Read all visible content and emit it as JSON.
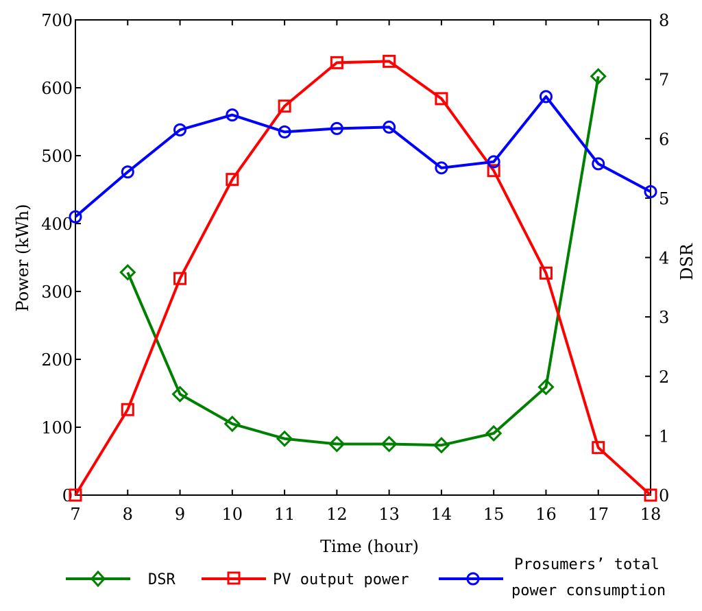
{
  "chart_data": {
    "type": "line",
    "title": "",
    "xlabel": "Time (hour)",
    "ylabel_left": "Power (kWh)",
    "ylabel_right": "DSR",
    "xlim": [
      7,
      18
    ],
    "ylim_left": [
      0,
      700
    ],
    "ylim_right": [
      0,
      8
    ],
    "grid": false,
    "legend_position": "bottom",
    "x_ticks": [
      7,
      8,
      9,
      10,
      11,
      12,
      13,
      14,
      15,
      16,
      17,
      18
    ],
    "y_left_ticks": [
      0,
      100,
      200,
      300,
      400,
      500,
      600,
      700
    ],
    "y_right_ticks": [
      0,
      1,
      2,
      3,
      4,
      5,
      6,
      7,
      8
    ],
    "series": [
      {
        "name": "DSR",
        "axis": "right",
        "color": "#008000",
        "marker": "diamond",
        "x": [
          8,
          9,
          10,
          11,
          12,
          13,
          14,
          15,
          16,
          17
        ],
        "values": [
          3.75,
          1.7,
          1.2,
          0.95,
          0.86,
          0.86,
          0.84,
          1.04,
          1.82,
          7.05
        ]
      },
      {
        "name": "PV output power",
        "axis": "left",
        "color": "#ff0000",
        "marker": "square",
        "x": [
          7,
          8,
          9,
          10,
          11,
          12,
          13,
          14,
          15,
          16,
          17,
          18
        ],
        "values": [
          0,
          126,
          319,
          465,
          573,
          637,
          639,
          584,
          478,
          327,
          70,
          0
        ]
      },
      {
        "name": "Prosumers' total power consumption",
        "axis": "left",
        "color": "#0000ff",
        "marker": "circle",
        "x": [
          7,
          8,
          9,
          10,
          11,
          12,
          13,
          14,
          15,
          16,
          17,
          18
        ],
        "values": [
          410,
          476,
          538,
          560,
          535,
          540,
          542,
          482,
          491,
          587,
          488,
          447
        ]
      }
    ],
    "legend": {
      "items": [
        {
          "label": "DSR"
        },
        {
          "label": "PV output power"
        },
        {
          "label_line1": "Prosumers’ total",
          "label_line2": "power consumption"
        }
      ]
    }
  }
}
